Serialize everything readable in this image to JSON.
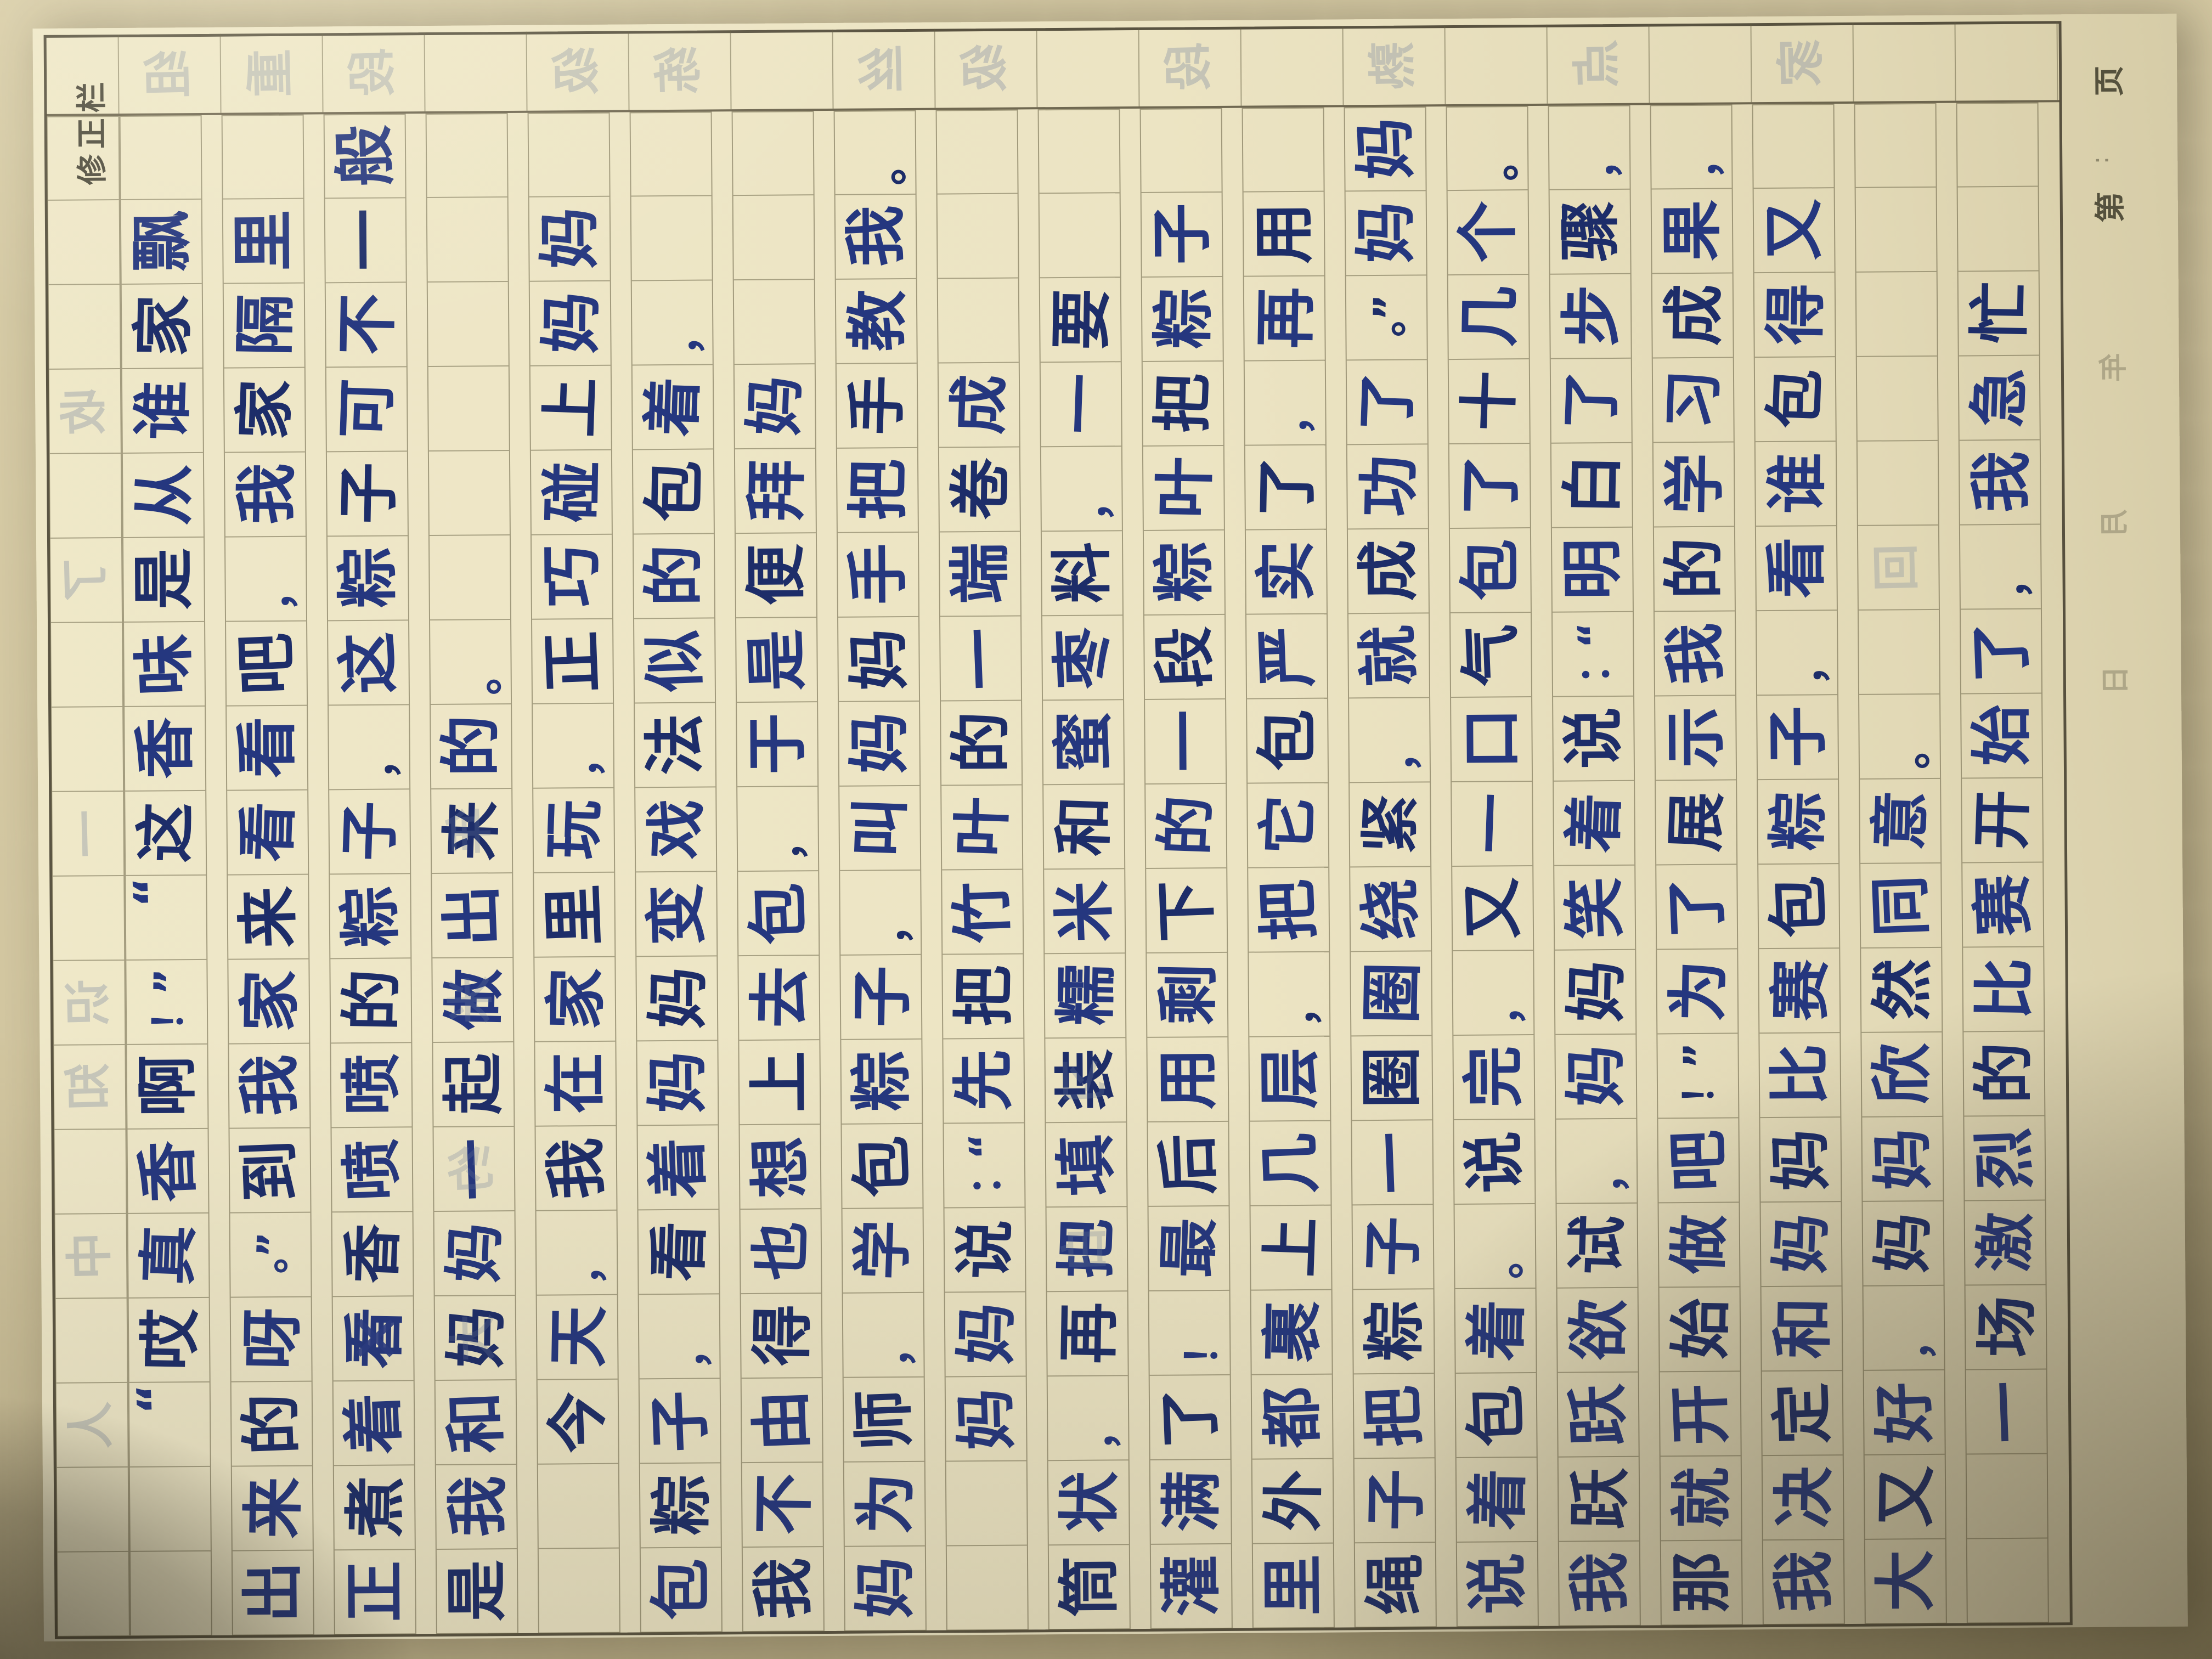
{
  "paper": {
    "correction_label": "修正栏",
    "footer": {
      "page_prefix": "第",
      "number_dots": "∶",
      "page_suffix": "页",
      "ghost_date": [
        "日",
        "月",
        "年"
      ]
    },
    "grid": {
      "text_rows": 19,
      "cells_per_row": 18
    }
  },
  "essay": {
    "lines": [
      "　　“哎真香啊！”“这香味是从谁家飘",
      "出来的呀。”到我家来看看吧，我家隔里",
      "正煮着看香喷喷的粽子，这粽子可不一般",
      "是我和妈妈一起做出来的。",
      "　　今天，我在家里玩，正巧碰上妈妈",
      "包粽子，看着妈妈变戏法似的包着，",
      "我不由得也想上去包，于是便拜妈",
      "妈为师，学包粽子，叫妈妈手把手教我。",
      "　　妈妈说：“先把竹叶的一端卷成",
      "筒状，再把填装糯米和蜜枣料，一要",
      "灌满了！最后用剩下的一段粽叶把粽子",
      "里外都裹上几层，把它包严实了，再用",
      "绳子把粽子一圈圈绕紧，就成功了。”妈妈",
      "说着包着。说完，又一口气包了十几个。",
      "我跃跃欲试，妈妈笑着说：“明白了步骤，",
      "那就开始做吧！”为了展示我的学习成果，",
      "我决定和妈妈比赛包粽子，看谁包得又",
      "大又好，妈妈欣然同意。",
      "　　一场激烈的比赛开始了，我急忙"
    ],
    "strikes": [
      {
        "line": 3,
        "cell": 3
      }
    ]
  },
  "ghosts": {
    "band": [
      {
        "row": 1,
        "ch": "组"
      },
      {
        "row": 2,
        "ch": "重"
      },
      {
        "row": 3,
        "ch": "段"
      },
      {
        "row": 5,
        "ch": "级"
      },
      {
        "row": 6,
        "ch": "练"
      },
      {
        "row": 8,
        "ch": "丝"
      },
      {
        "row": 9,
        "ch": "级"
      },
      {
        "row": 11,
        "ch": "段"
      },
      {
        "row": 13,
        "ch": "熟"
      },
      {
        "row": 15,
        "ch": "点"
      },
      {
        "row": 17,
        "ch": "家"
      }
    ],
    "top_row": [
      {
        "col": 2,
        "ch": "人"
      },
      {
        "col": 4,
        "ch": "中"
      },
      {
        "col": 6,
        "ch": "知"
      },
      {
        "col": 7,
        "ch": "识"
      },
      {
        "col": 9,
        "ch": "一"
      },
      {
        "col": 12,
        "ch": "了"
      },
      {
        "col": 14,
        "ch": "收"
      }
    ],
    "main": [
      {
        "row": 4,
        "col": 3,
        "ch": "大"
      },
      {
        "row": 4,
        "col": 5,
        "ch": "约"
      },
      {
        "row": 4,
        "col": 7,
        "ch": "米"
      },
      {
        "row": 4,
        "col": 9,
        "ch": "年"
      },
      {
        "row": 10,
        "col": 4,
        "ch": "白"
      },
      {
        "row": 10,
        "col": 6,
        "ch": "习"
      },
      {
        "row": 18,
        "col": 12,
        "ch": "回"
      }
    ]
  }
}
